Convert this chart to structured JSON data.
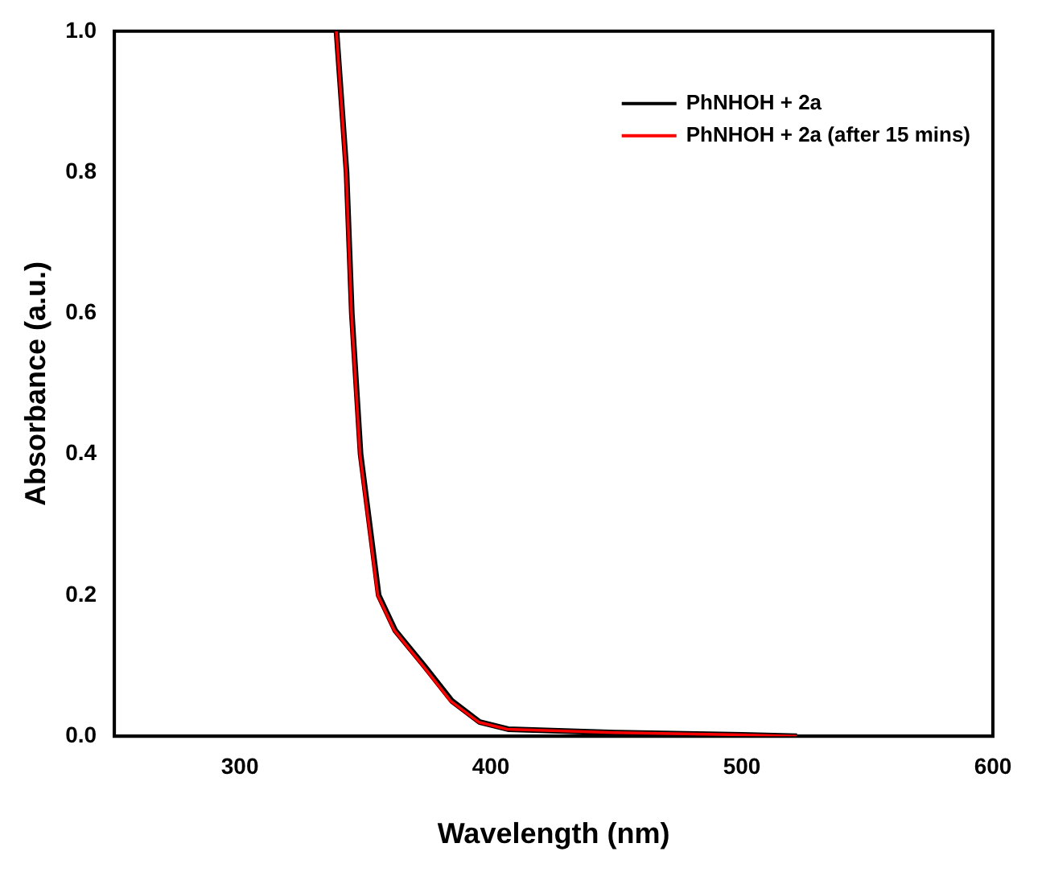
{
  "chart_data": {
    "type": "line",
    "xlabel": "Wavelength (nm)",
    "ylabel": "Absorbance (a.u.)",
    "xlim": [
      250,
      600
    ],
    "xticks": [
      300,
      400,
      500,
      600
    ],
    "ylim": [
      0,
      1
    ],
    "yticks": [
      {
        "value": 0,
        "label": "0.0"
      },
      {
        "value": 0.2,
        "label": "0.2"
      },
      {
        "value": 0.4,
        "label": "0.4"
      },
      {
        "value": 0.6,
        "label": "0.6"
      },
      {
        "value": 0.8,
        "label": "0.8"
      },
      {
        "value": 1,
        "label": "1.0"
      }
    ],
    "grid": false,
    "legend": "top right",
    "marker": "none",
    "line_style": "solid",
    "series": [
      {
        "name": "PhNHOH + 2a",
        "color": "#000000",
        "x": [
          338.5,
          342.5,
          344.6,
          348.1,
          355.3,
          361.9,
          373.4,
          384.5,
          395.6,
          406.9,
          450,
          500,
          522
        ],
        "values": [
          1.0,
          0.8,
          0.6,
          0.4,
          0.2,
          0.15,
          0.1,
          0.05,
          0.02,
          0.01,
          0.005,
          0.002,
          0.0
        ]
      },
      {
        "name": "PhNHOH + 2a (after 15 mins)",
        "color": "#ff0000",
        "x": [
          338.5,
          342.4,
          344.5,
          347.9,
          355.0,
          361.6,
          373.0,
          384.0,
          395.2,
          406.5,
          450,
          500,
          522
        ],
        "values": [
          1.0,
          0.8,
          0.6,
          0.4,
          0.2,
          0.15,
          0.1,
          0.05,
          0.02,
          0.01,
          0.005,
          0.002,
          0.0
        ]
      }
    ]
  }
}
